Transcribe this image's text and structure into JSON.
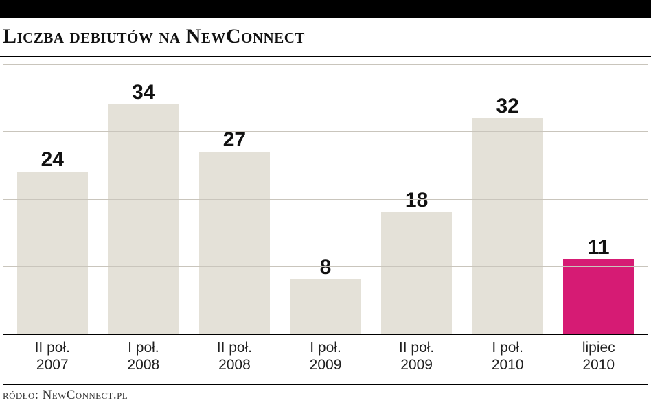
{
  "chart": {
    "type": "bar",
    "title": "Liczba debiutów na NewConnect",
    "title_fontsize": 30,
    "title_color": "#111111",
    "source_label": "ródło: NewConnect.pl",
    "source_fontsize": 19,
    "source_color": "#333333",
    "background_color": "#ffffff",
    "top_bar_color": "#000000",
    "divider_color": "#000000",
    "grid_color": "#c9c5bc",
    "axis_color": "#000000",
    "ylim": [
      0,
      40
    ],
    "ytick_step": 10,
    "bar_width": 0.78,
    "default_bar_color": "#e4e1d8",
    "highlight_bar_color": "#d61b74",
    "value_label_color": "#111111",
    "categories": [
      {
        "line1": "II poł.",
        "line2": "2007"
      },
      {
        "line1": "I poł.",
        "line2": "2008"
      },
      {
        "line1": "II poł.",
        "line2": "2008"
      },
      {
        "line1": "I poł.",
        "line2": "2009"
      },
      {
        "line1": "II poł.",
        "line2": "2009"
      },
      {
        "line1": "I poł.",
        "line2": "2010"
      },
      {
        "line1": "lipiec",
        "line2": "2010"
      }
    ],
    "values": [
      24,
      34,
      27,
      8,
      18,
      32,
      11
    ],
    "bar_colors": [
      "#e4e1d8",
      "#e4e1d8",
      "#e4e1d8",
      "#e4e1d8",
      "#e4e1d8",
      "#e4e1d8",
      "#d61b74"
    ]
  }
}
